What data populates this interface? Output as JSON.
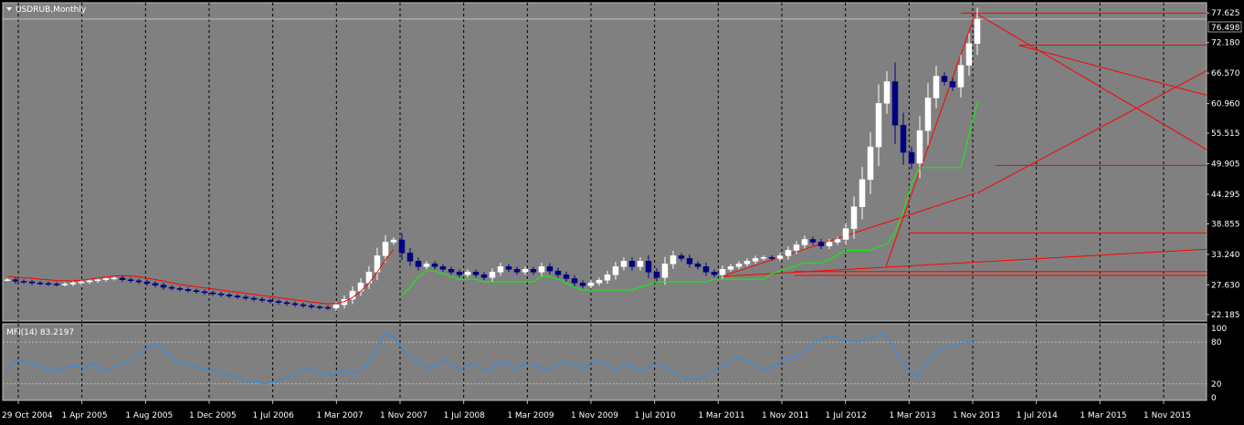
{
  "colors": {
    "background": "#000000",
    "plot_bg": "#808080",
    "grid": "#000000",
    "bull_candle": "#ffffff",
    "bear_candle": "#000080",
    "red_line": "#ff0000",
    "green_line": "#00ff00",
    "mfi_line": "#1e90ff",
    "price_label_bg": "#000000"
  },
  "chart_data": [
    {
      "type": "candlestick",
      "title": "USDRUB,Monthly",
      "ylim": [
        21.0,
        79.5
      ],
      "y_ticks": [
        "77.625",
        "72.180",
        "66.570",
        "60.960",
        "55.515",
        "49.905",
        "44.295",
        "38.855",
        "33.240",
        "27.630",
        "22.185"
      ],
      "y_tick_values": [
        77.625,
        72.18,
        66.57,
        60.96,
        55.515,
        49.905,
        44.295,
        38.855,
        33.24,
        27.63,
        22.185
      ],
      "current_price": "76.498",
      "current_price_value": 76.498,
      "x_labels": [
        "29 Oct 2004",
        "1 Apr 2005",
        "1 Aug 2005",
        "1 Dec 2005",
        "1 Jul 2006",
        "1 Mar 2007",
        "1 Nov 2007",
        "1 Jul 2008",
        "1 Mar 2009",
        "1 Nov 2009",
        "1 Jul 2010",
        "1 Mar 2011",
        "1 Nov 2011",
        "1 Jul 2012",
        "1 Mar 2013",
        "1 Nov 2013",
        "1 Jul 2014",
        "1 Mar 2015",
        "1 Nov 2015"
      ],
      "close": [
        28.6,
        28.3,
        28.2,
        28.0,
        27.9,
        27.8,
        27.7,
        27.8,
        28.0,
        28.2,
        28.4,
        28.6,
        28.8,
        28.9,
        28.6,
        28.4,
        28.2,
        27.9,
        27.6,
        27.2,
        27.0,
        26.8,
        26.6,
        26.4,
        26.2,
        26.0,
        25.8,
        25.6,
        25.4,
        25.2,
        25.0,
        24.8,
        24.6,
        24.4,
        24.2,
        24.0,
        23.8,
        23.6,
        23.5,
        23.4,
        24.0,
        25.0,
        26.5,
        28.0,
        30.0,
        33.0,
        35.5,
        35.9,
        33.5,
        32.0,
        31.0,
        31.5,
        31.0,
        30.5,
        30.0,
        29.5,
        30.0,
        29.5,
        29.0,
        30.0,
        31.0,
        30.5,
        30.0,
        30.5,
        30.0,
        31.0,
        30.2,
        29.5,
        28.8,
        28.0,
        27.5,
        28.0,
        28.5,
        29.5,
        31.0,
        32.0,
        31.0,
        32.0,
        30.0,
        29.0,
        31.5,
        33.0,
        32.5,
        31.5,
        31.0,
        30.0,
        29.5,
        30.5,
        31.0,
        31.5,
        32.0,
        32.5,
        32.7,
        32.5,
        33.0,
        34.0,
        35.0,
        36.0,
        35.5,
        34.8,
        35.5,
        36.0,
        38.0,
        42.0,
        47.0,
        53.0,
        61.0,
        65.0,
        57.0,
        52.0,
        50.0,
        56.0,
        62.0,
        66.0,
        65.0,
        64.0,
        68.0,
        72.0,
        76.5
      ],
      "series": [
        {
          "name": "MFI(14) 83.2197",
          "label": "MFI(14) 83.2197"
        }
      ],
      "mfi": {
        "label": "MFI(14) 83.2197",
        "ylim": [
          0,
          100
        ],
        "levels": [
          20,
          80
        ],
        "level_labels": [
          "100",
          "80",
          "20",
          "0"
        ],
        "values": [
          40,
          55,
          52,
          48,
          45,
          38,
          40,
          44,
          46,
          42,
          50,
          38,
          42,
          48,
          52,
          60,
          70,
          78,
          72,
          60,
          52,
          48,
          44,
          42,
          40,
          36,
          32,
          28,
          24,
          22,
          20,
          22,
          26,
          32,
          38,
          42,
          38,
          34,
          32,
          40,
          36,
          38,
          50,
          72,
          92,
          88,
          70,
          58,
          50,
          42,
          48,
          55,
          46,
          40,
          50,
          44,
          38,
          48,
          52,
          42,
          46,
          50,
          44,
          40,
          48,
          52,
          46,
          42,
          50,
          55,
          45,
          40,
          50,
          44,
          38,
          46,
          50,
          42,
          34,
          28,
          26,
          30,
          36,
          42,
          50,
          58,
          54,
          48,
          40,
          44,
          50,
          56,
          60,
          70,
          78,
          86,
          90,
          84,
          82,
          80,
          84,
          88,
          92,
          78,
          56,
          40,
          30,
          48,
          62,
          72,
          74,
          78,
          80,
          83
        ]
      }
    }
  ]
}
